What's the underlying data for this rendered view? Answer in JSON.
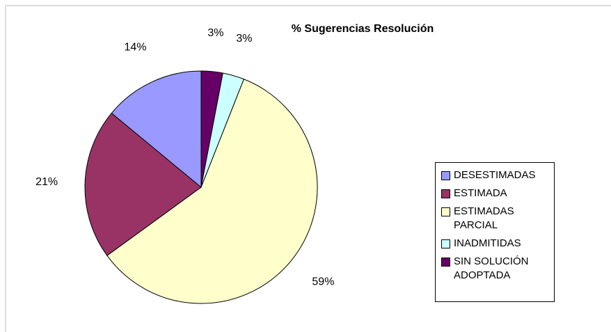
{
  "chart_data": {
    "type": "pie",
    "title": "% Sugerencias Resolución",
    "categories": [
      "DESESTIMADAS",
      "ESTIMADA",
      "ESTIMADAS PARCIAL",
      "INADMITIDAS",
      "SIN SOLUCIÓN ADOPTADA"
    ],
    "values": [
      14,
      21,
      59,
      3,
      3
    ],
    "value_labels": [
      "14%",
      "21%",
      "59%",
      "3%",
      "3%"
    ],
    "colors": [
      "#9999ff",
      "#993366",
      "#ffffcc",
      "#ccffff",
      "#660066"
    ],
    "legend": "right"
  }
}
